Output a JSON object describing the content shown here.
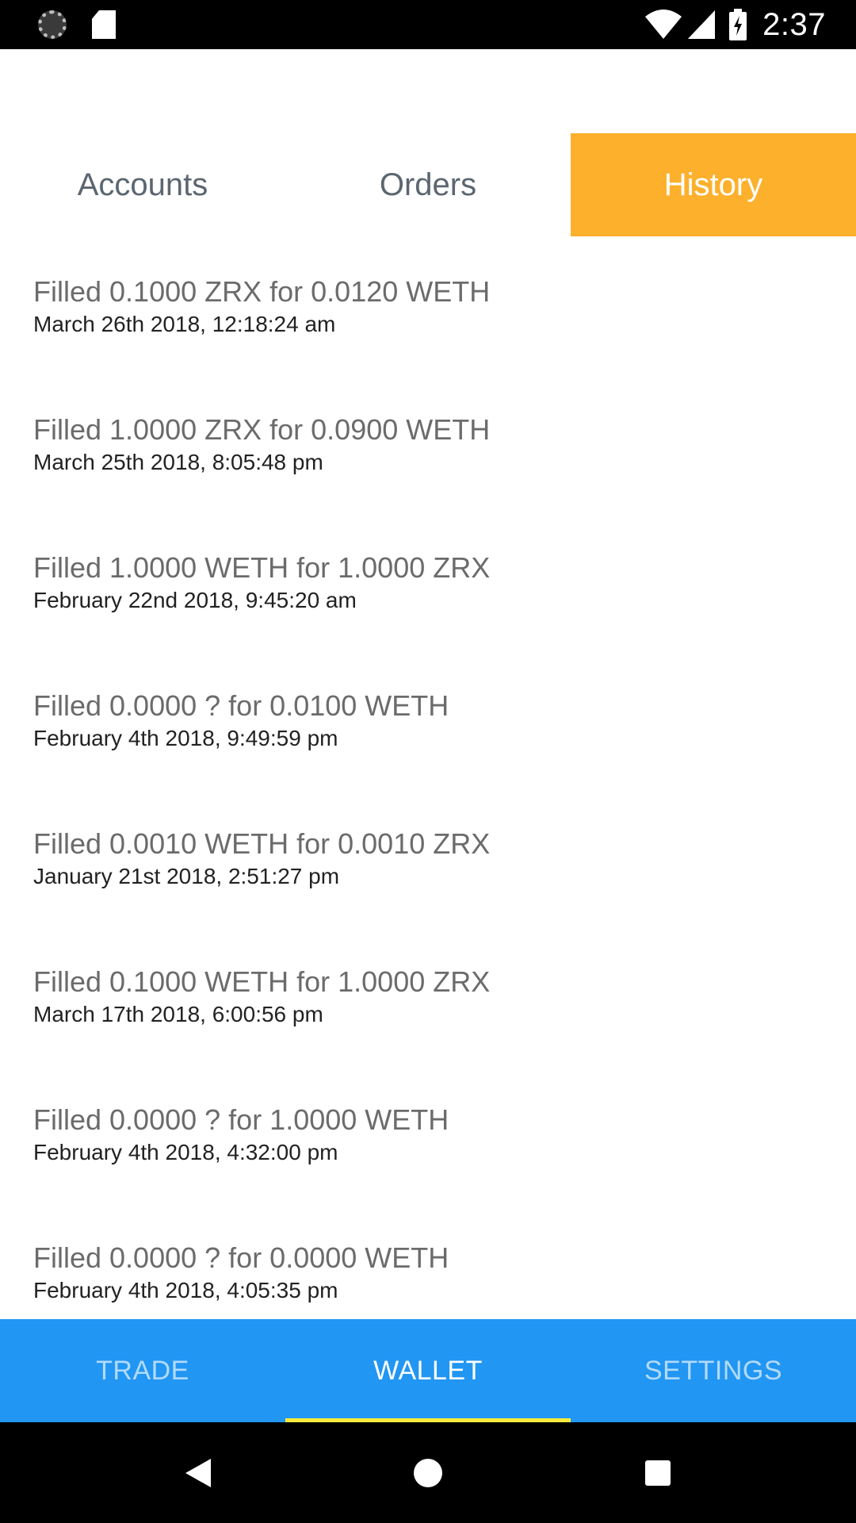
{
  "status_bar": {
    "time": "2:37",
    "icons": [
      "loading-spinner-icon",
      "sd-card-icon",
      "wifi-icon",
      "cell-signal-icon",
      "battery-charging-icon"
    ]
  },
  "top_tabs": [
    {
      "label": "Accounts",
      "active": false
    },
    {
      "label": "Orders",
      "active": false
    },
    {
      "label": "History",
      "active": true
    }
  ],
  "colors": {
    "active_tab": "#fcb02c",
    "bottom_bar": "#2196f3",
    "bottom_indicator": "#ffeb3b"
  },
  "history": [
    {
      "title": "Filled 0.1000 ZRX for 0.0120 WETH",
      "date": "March 26th 2018, 12:18:24 am"
    },
    {
      "title": "Filled 1.0000 ZRX for 0.0900 WETH",
      "date": "March 25th 2018, 8:05:48 pm"
    },
    {
      "title": "Filled 1.0000 WETH for 1.0000 ZRX",
      "date": "February 22nd 2018, 9:45:20 am"
    },
    {
      "title": "Filled 0.0000 ? for 0.0100 WETH",
      "date": "February 4th 2018, 9:49:59 pm"
    },
    {
      "title": "Filled 0.0010 WETH for 0.0010 ZRX",
      "date": "January 21st 2018, 2:51:27 pm"
    },
    {
      "title": "Filled 0.1000 WETH for 1.0000 ZRX",
      "date": "March 17th 2018, 6:00:56 pm"
    },
    {
      "title": "Filled 0.0000 ? for 1.0000 WETH",
      "date": "February 4th 2018, 4:32:00 pm"
    },
    {
      "title": "Filled 0.0000 ? for 0.0000 WETH",
      "date": "February 4th 2018, 4:05:35 pm"
    }
  ],
  "bottom_tabs": [
    {
      "label": "TRADE",
      "active": false
    },
    {
      "label": "WALLET",
      "active": true
    },
    {
      "label": "SETTINGS",
      "active": false
    }
  ],
  "nav_bar": {
    "icons": [
      "back-icon",
      "home-icon",
      "recents-icon"
    ]
  }
}
